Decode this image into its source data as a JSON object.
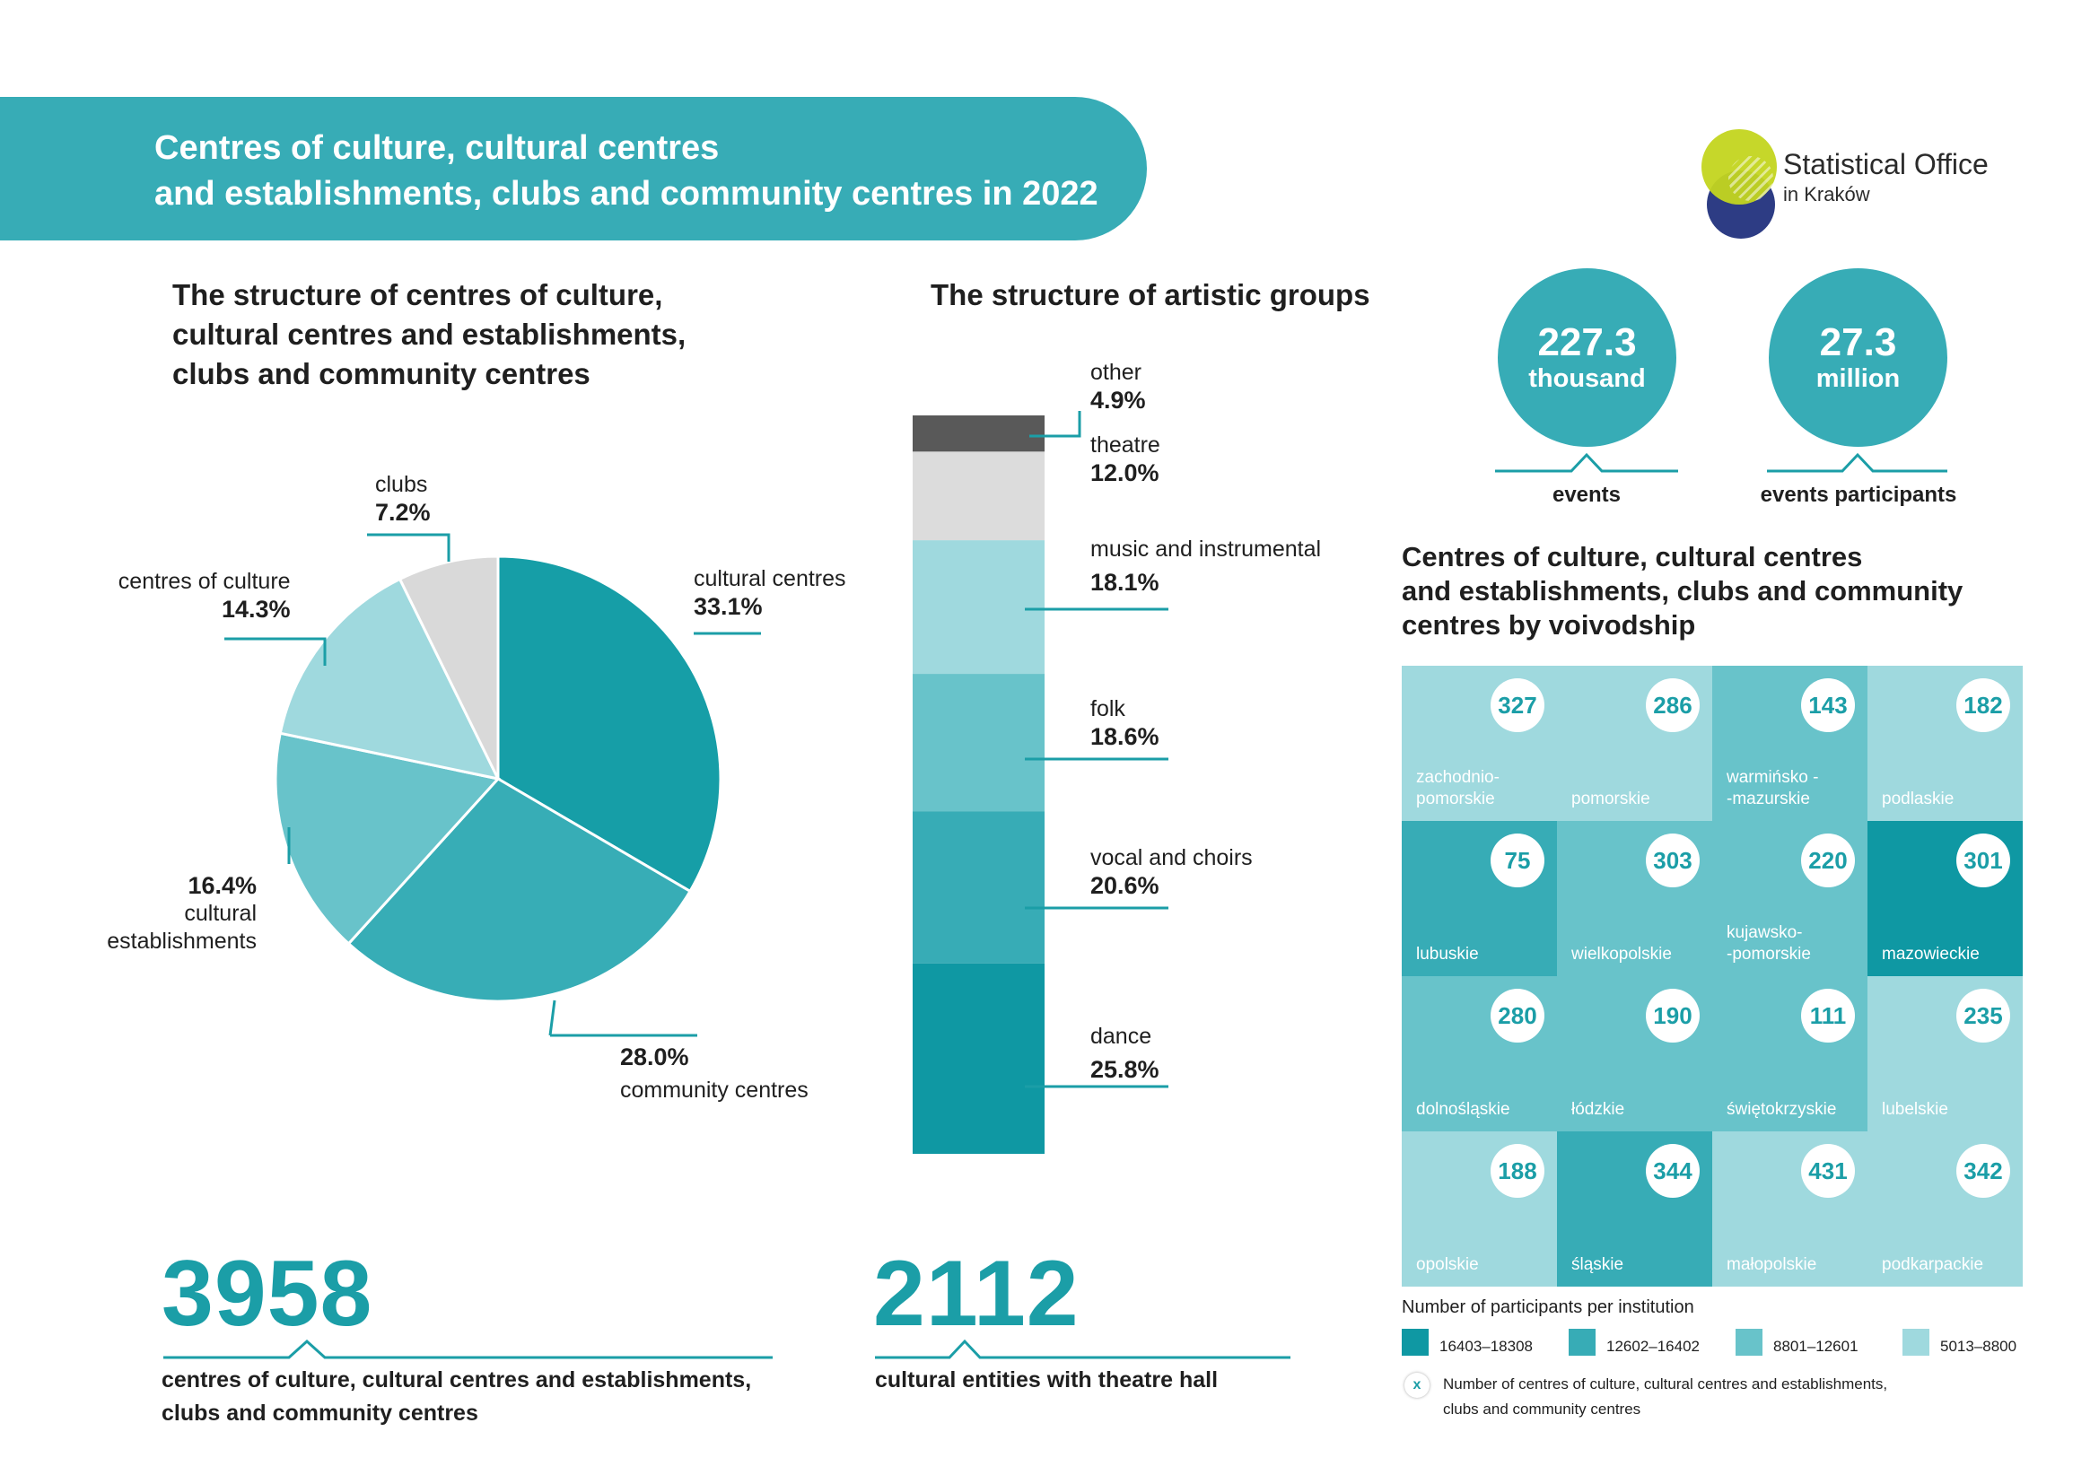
{
  "header": {
    "title_line1": "Centres of culture, cultural centres",
    "title_line2": "and establishments, clubs and community centres in 2022",
    "logo_line1": "Statistical Office",
    "logo_line2": "in Kraków"
  },
  "colors": {
    "banner": "#37acb6",
    "darkest": "#0f98a3",
    "dark": "#37acb6",
    "mid": "#68c3ca",
    "light": "#9fd9de",
    "grey_light": "#d9d9d9",
    "grey_dark": "#595959"
  },
  "pie_section": {
    "title_line1": "The structure of centres of culture,",
    "title_line2": "cultural centres and establishments,",
    "title_line3": "clubs and community centres"
  },
  "groups_section": {
    "title": "The structure of artistic groups"
  },
  "stats": {
    "events_value": "227.3",
    "events_unit": "thousand",
    "events_caption": "events",
    "participants_value": "27.3",
    "participants_unit": "million",
    "participants_caption": "events participants"
  },
  "totals": {
    "centres_number": "3958",
    "centres_caption_line1": "centres of culture, cultural centres and establishments,",
    "centres_caption_line2": "clubs and community centres",
    "theatre_number": "2112",
    "theatre_caption": "cultural entities with theatre hall"
  },
  "voivodship_section": {
    "title_line1": "Centres of culture, cultural centres",
    "title_line2": "and establishments, clubs and community",
    "title_line3": "centres by voivodship",
    "legend_title": "Number of participants per institution",
    "legend": [
      {
        "label": "16403–18308",
        "color": "#0f98a3"
      },
      {
        "label": "12602–16402",
        "color": "#37acb6"
      },
      {
        "label": "8801–12601",
        "color": "#68c3ca"
      },
      {
        "label": "5013–8800",
        "color": "#9fd9de"
      }
    ],
    "note_symbol": "x",
    "note_line1": "Number of centres of culture, cultural centres and establishments,",
    "note_line2": "clubs and community centres"
  },
  "chart_data": [
    {
      "type": "pie",
      "title": "The structure of centres of culture, cultural centres and establishments, clubs and community centres",
      "unit": "%",
      "slices": [
        {
          "label": "cultural centres",
          "value": 33.1,
          "display": "33.1%",
          "color": "#169ea7"
        },
        {
          "label": "community centres",
          "value": 28.0,
          "display": "28.0%",
          "color": "#37adb6"
        },
        {
          "label": "cultural establishments",
          "value": 16.4,
          "display": "16.4%",
          "color": "#68c3ca"
        },
        {
          "label": "centres of culture",
          "value": 14.3,
          "display": "14.3%",
          "color": "#9fd9de"
        },
        {
          "label": "clubs",
          "value": 7.2,
          "display": "7.2%",
          "color": "#d9d9d9"
        }
      ]
    },
    {
      "type": "bar",
      "stacked": true,
      "title": "The structure of artistic groups",
      "unit": "%",
      "segments": [
        {
          "label": "dance",
          "value": 25.8,
          "display": "25.8%",
          "color": "#0f98a3"
        },
        {
          "label": "vocal and choirs",
          "value": 20.6,
          "display": "20.6%",
          "color": "#37acb6"
        },
        {
          "label": "folk",
          "value": 18.6,
          "display": "18.6%",
          "color": "#68c3ca"
        },
        {
          "label": "music and instrumental",
          "value": 18.1,
          "display": "18.1%",
          "color": "#9fd9de"
        },
        {
          "label": "theatre",
          "value": 12.0,
          "display": "12.0%",
          "color": "#dcdcdc"
        },
        {
          "label": "other",
          "value": 4.9,
          "display": "4.9%",
          "color": "#595959"
        }
      ]
    },
    {
      "type": "heatmap",
      "title": "Centres of culture, cultural centres and establishments, clubs and community centres by voivodship",
      "rows": 4,
      "cols": 4,
      "cells": [
        {
          "name": "zachodnio-\npomorskie",
          "count": 327,
          "participants_class": "5013–8800"
        },
        {
          "name": "pomorskie",
          "count": 286,
          "participants_class": "5013–8800"
        },
        {
          "name": "warmińsko -\n-mazurskie",
          "count": 143,
          "participants_class": "8801–12601"
        },
        {
          "name": "podlaskie",
          "count": 182,
          "participants_class": "5013–8800"
        },
        {
          "name": "lubuskie",
          "count": 75,
          "participants_class": "12602–16402"
        },
        {
          "name": "wielkopolskie",
          "count": 303,
          "participants_class": "8801–12601"
        },
        {
          "name": "kujawsko-\n-pomorskie",
          "count": 220,
          "participants_class": "8801–12601"
        },
        {
          "name": "mazowieckie",
          "count": 301,
          "participants_class": "16403–18308"
        },
        {
          "name": "dolnośląskie",
          "count": 280,
          "participants_class": "8801–12601"
        },
        {
          "name": "łódzkie",
          "count": 190,
          "participants_class": "8801–12601"
        },
        {
          "name": "świętokrzyskie",
          "count": 111,
          "participants_class": "8801–12601"
        },
        {
          "name": "lubelskie",
          "count": 235,
          "participants_class": "5013–8800"
        },
        {
          "name": "opolskie",
          "count": 188,
          "participants_class": "5013–8800"
        },
        {
          "name": "śląskie",
          "count": 344,
          "participants_class": "12602–16402"
        },
        {
          "name": "małopolskie",
          "count": 431,
          "participants_class": "5013–8800"
        },
        {
          "name": "podkarpackie",
          "count": 342,
          "participants_class": "5013–8800"
        }
      ]
    }
  ]
}
